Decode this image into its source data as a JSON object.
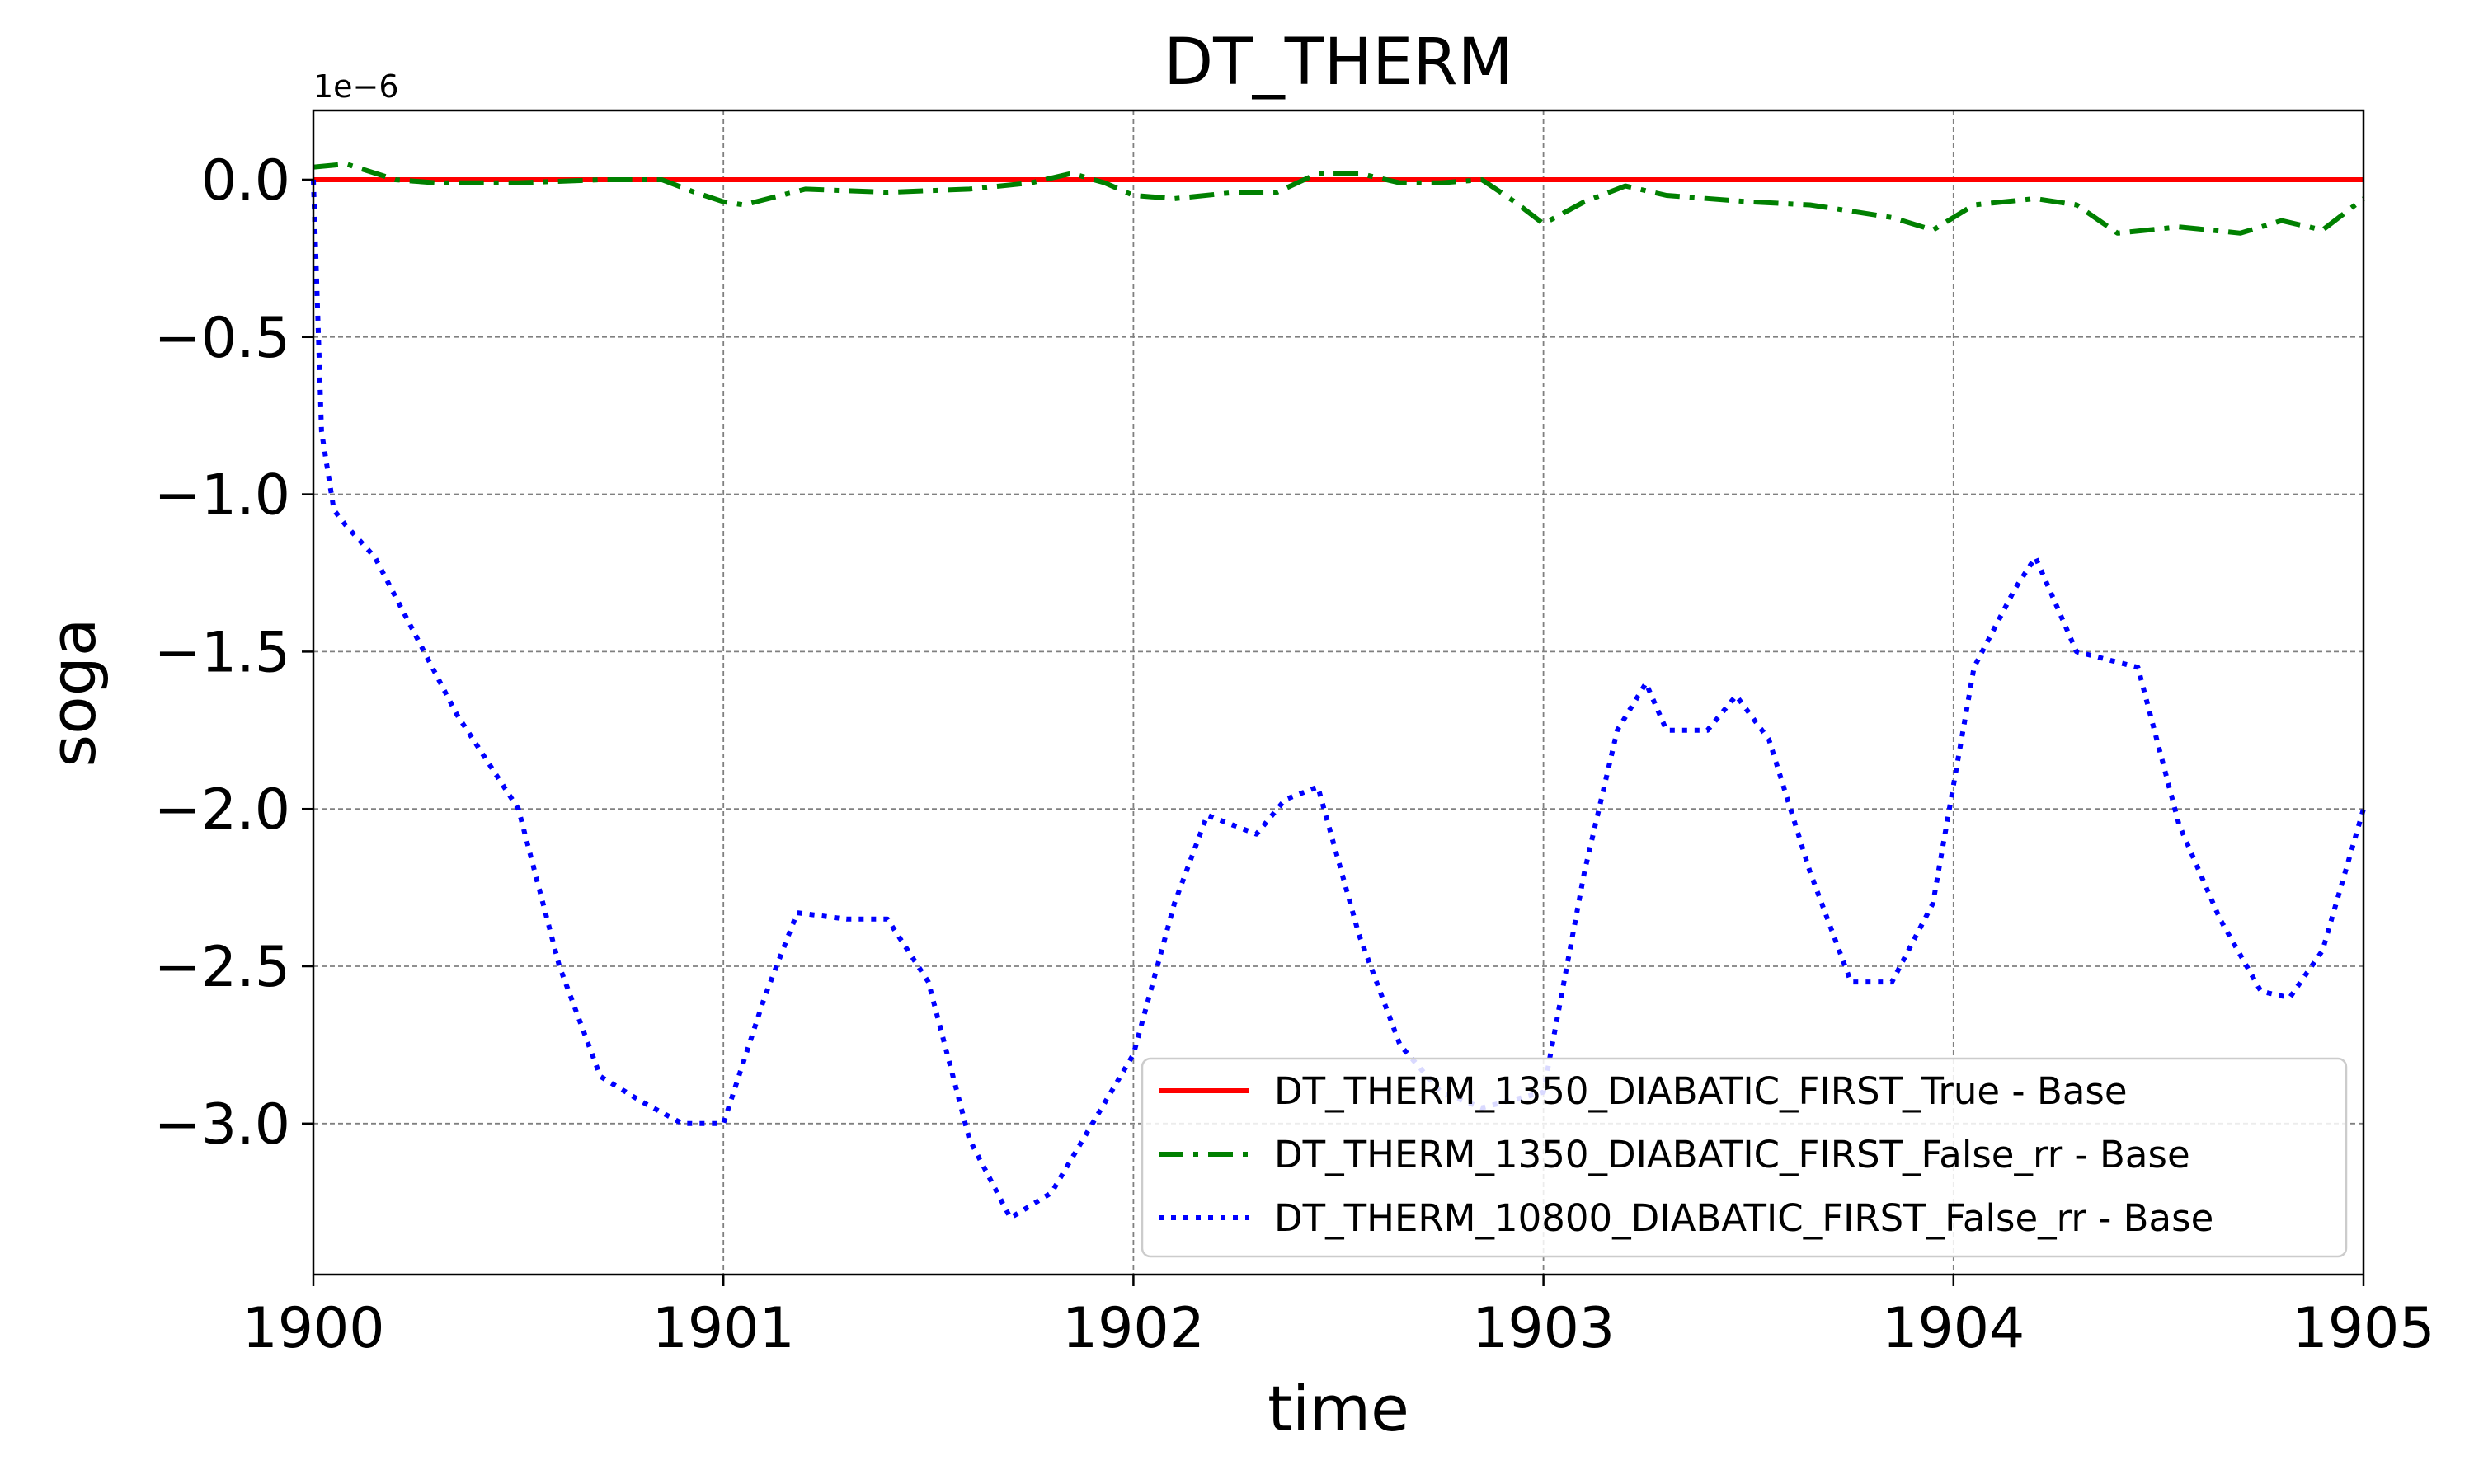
{
  "chart_data": {
    "type": "line",
    "title": "DT_THERM",
    "xlabel": "time",
    "ylabel": "soga",
    "y_offset_label": "1e−6",
    "xlim": [
      1900,
      1905
    ],
    "ylim": [
      -3.48,
      0.22
    ],
    "x_ticks": [
      1900,
      1901,
      1902,
      1903,
      1904,
      1905
    ],
    "x_tick_labels": [
      "1900",
      "1901",
      "1902",
      "1903",
      "1904",
      "1905"
    ],
    "y_ticks": [
      0.0,
      -0.5,
      -1.0,
      -1.5,
      -2.0,
      -2.5,
      -3.0
    ],
    "y_tick_labels": [
      "0.0",
      "−0.5",
      "−1.0",
      "−1.5",
      "−2.0",
      "−2.5",
      "−3.0"
    ],
    "grid": true,
    "legend_position": "bottom-right",
    "series": [
      {
        "name": "DT_THERM_1350_DIABATIC_FIRST_True - Base",
        "color": "#ff0000",
        "style": "solid",
        "x": [
          1900,
          1905
        ],
        "y": [
          0.0,
          0.0
        ]
      },
      {
        "name": "DT_THERM_1350_DIABATIC_FIRST_False_rr - Base",
        "color": "#008000",
        "style": "dashdot",
        "x": [
          1900,
          1900.08,
          1900.2,
          1900.3,
          1900.5,
          1900.7,
          1900.85,
          1900.93,
          1901.0,
          1901.05,
          1901.2,
          1901.4,
          1901.6,
          1901.75,
          1901.85,
          1901.93,
          1902.0,
          1902.1,
          1902.25,
          1902.35,
          1902.45,
          1902.55,
          1902.65,
          1902.75,
          1902.85,
          1902.93,
          1903.0,
          1903.1,
          1903.2,
          1903.3,
          1903.5,
          1903.65,
          1903.75,
          1903.85,
          1903.95,
          1904.05,
          1904.2,
          1904.3,
          1904.4,
          1904.55,
          1904.7,
          1904.8,
          1904.9,
          1905.0
        ],
        "y": [
          0.04,
          0.05,
          0.0,
          -0.01,
          -0.01,
          0.0,
          0.0,
          -0.04,
          -0.07,
          -0.08,
          -0.03,
          -0.04,
          -0.03,
          -0.01,
          0.02,
          -0.01,
          -0.05,
          -0.06,
          -0.04,
          -0.04,
          0.02,
          0.02,
          -0.01,
          -0.01,
          0.0,
          -0.07,
          -0.14,
          -0.07,
          -0.02,
          -0.05,
          -0.07,
          -0.08,
          -0.1,
          -0.12,
          -0.16,
          -0.08,
          -0.06,
          -0.08,
          -0.17,
          -0.15,
          -0.17,
          -0.13,
          -0.16,
          -0.06
        ]
      },
      {
        "name": "DT_THERM_10800_DIABATIC_FIRST_False_rr - Base",
        "color": "#0000ff",
        "style": "dotted",
        "x": [
          1900,
          1900.02,
          1900.05,
          1900.08,
          1900.15,
          1900.25,
          1900.35,
          1900.5,
          1900.6,
          1900.7,
          1900.8,
          1900.9,
          1901.0,
          1901.1,
          1901.18,
          1901.3,
          1901.4,
          1901.5,
          1901.6,
          1901.7,
          1901.8,
          1901.9,
          1902.0,
          1902.1,
          1902.18,
          1902.3,
          1902.37,
          1902.45,
          1902.55,
          1902.65,
          1902.75,
          1902.85,
          1903.0,
          1903.1,
          1903.18,
          1903.25,
          1903.3,
          1903.4,
          1903.47,
          1903.55,
          1903.65,
          1903.75,
          1903.85,
          1903.95,
          1904.05,
          1904.15,
          1904.2,
          1904.3,
          1904.45,
          1904.55,
          1904.65,
          1904.75,
          1904.82,
          1904.9,
          1905.0
        ],
        "y": [
          0.0,
          -0.8,
          -1.05,
          -1.1,
          -1.2,
          -1.45,
          -1.7,
          -2.0,
          -2.5,
          -2.85,
          -2.93,
          -3.0,
          -3.0,
          -2.6,
          -2.33,
          -2.35,
          -2.35,
          -2.55,
          -3.05,
          -3.3,
          -3.22,
          -3.0,
          -2.78,
          -2.3,
          -2.02,
          -2.08,
          -1.97,
          -1.93,
          -2.4,
          -2.75,
          -2.9,
          -2.95,
          -2.9,
          -2.2,
          -1.75,
          -1.6,
          -1.75,
          -1.75,
          -1.64,
          -1.78,
          -2.2,
          -2.55,
          -2.55,
          -2.3,
          -1.55,
          -1.3,
          -1.2,
          -1.5,
          -1.55,
          -2.05,
          -2.35,
          -2.58,
          -2.6,
          -2.45,
          -2.0
        ]
      }
    ]
  }
}
